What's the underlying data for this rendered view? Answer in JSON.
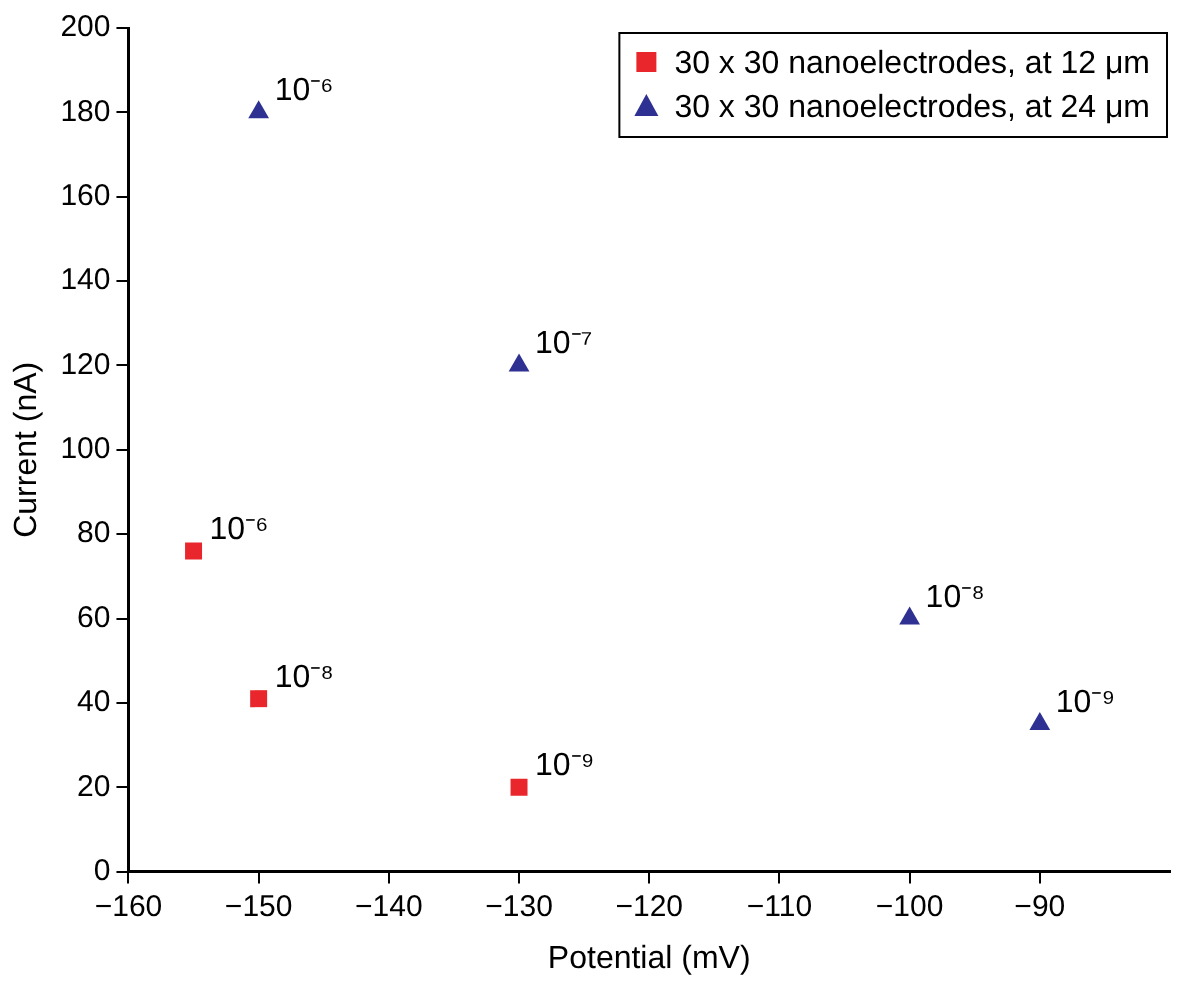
{
  "chart_data": {
    "type": "scatter",
    "xlabel": "Potential (mV)",
    "ylabel": "Current (nA)",
    "series": [
      {
        "name": "30 x 30 nanoelectrodes, at 12 μm",
        "color": "#e8262b",
        "marker": "square",
        "x": [
          -155,
          -150,
          -130
        ],
        "values": [
          76,
          41,
          20
        ]
      },
      {
        "name": "30 x 30 nanoelectrodes, at 24 μm",
        "color": "#2e3192",
        "marker": "triangle",
        "x": [
          -150,
          -130,
          -100,
          -90
        ],
        "values": [
          180,
          120,
          60,
          35
        ]
      }
    ],
    "annotations": [
      {
        "text": "10⁻⁶",
        "x": -155,
        "y": 76
      },
      {
        "text": "10⁻⁸",
        "x": -150,
        "y": 41
      },
      {
        "text": "10⁻⁹",
        "x": -130,
        "y": 20
      },
      {
        "text": "10⁻⁶",
        "x": -150,
        "y": 180
      },
      {
        "text": "10⁻⁷",
        "x": -130,
        "y": 120
      },
      {
        "text": "10⁻⁸",
        "x": -100,
        "y": 60
      },
      {
        "text": "10⁻⁹",
        "x": -90,
        "y": 35
      }
    ],
    "xlim": [
      -160,
      -80
    ],
    "xticks": [
      -160,
      -150,
      -140,
      -130,
      -120,
      -110,
      -100,
      -90
    ],
    "ylim": [
      0,
      200
    ],
    "yticks": [
      0,
      20,
      40,
      60,
      80,
      100,
      120,
      140,
      160,
      180,
      200
    ],
    "grid": false,
    "legend": "top right"
  }
}
